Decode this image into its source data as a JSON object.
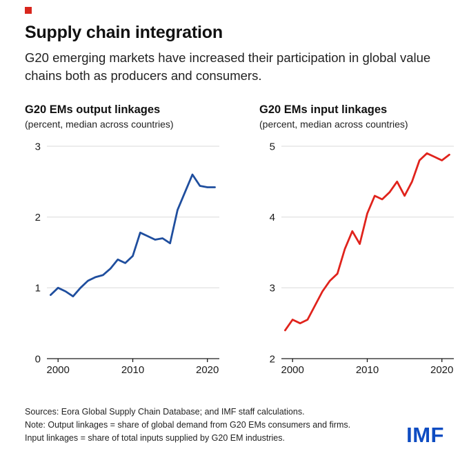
{
  "header": {
    "title": "Supply chain integration",
    "subtitle": "G20 emerging markets have increased their participation in global value chains both as producers and consumers."
  },
  "colors": {
    "accent_red": "#d8261d",
    "logo_blue": "#0e4cc2",
    "gridline": "#d9d9d9",
    "axis": "#1a1a1a"
  },
  "chart_data": [
    {
      "type": "line",
      "title": "G20 EMs output linkages",
      "subtitle": "(percent, median across countries)",
      "color": "#1f4e9e",
      "x": [
        1999,
        2000,
        2001,
        2002,
        2003,
        2004,
        2005,
        2006,
        2007,
        2008,
        2009,
        2010,
        2011,
        2012,
        2013,
        2014,
        2015,
        2016,
        2017,
        2018,
        2019,
        2020,
        2021
      ],
      "values": [
        0.9,
        1.0,
        0.95,
        0.88,
        1.0,
        1.1,
        1.15,
        1.18,
        1.27,
        1.4,
        1.35,
        1.45,
        1.78,
        1.73,
        1.68,
        1.7,
        1.63,
        2.1,
        2.35,
        2.6,
        2.44,
        2.42,
        2.42
      ],
      "xlim": [
        1998.5,
        2021.6
      ],
      "ylim": [
        0,
        3
      ],
      "yticks": [
        0,
        1,
        2,
        3
      ],
      "xticks": [
        2000,
        2010,
        2020
      ],
      "xlabel": "",
      "ylabel": "",
      "grid": true,
      "legend": false
    },
    {
      "type": "line",
      "title": "G20 EMs input linkages",
      "subtitle": "(percent, median across countries)",
      "color": "#e0231c",
      "x": [
        1999,
        2000,
        2001,
        2002,
        2003,
        2004,
        2005,
        2006,
        2007,
        2008,
        2009,
        2010,
        2011,
        2012,
        2013,
        2014,
        2015,
        2016,
        2017,
        2018,
        2019,
        2020,
        2021
      ],
      "values": [
        2.4,
        2.55,
        2.5,
        2.55,
        2.75,
        2.95,
        3.1,
        3.2,
        3.55,
        3.8,
        3.62,
        4.05,
        4.3,
        4.25,
        4.35,
        4.5,
        4.3,
        4.5,
        4.8,
        4.9,
        4.85,
        4.8,
        4.88
      ],
      "xlim": [
        1998.5,
        2021.6
      ],
      "ylim": [
        2,
        5
      ],
      "yticks": [
        2,
        3,
        4,
        5
      ],
      "xticks": [
        2000,
        2010,
        2020
      ],
      "xlabel": "",
      "ylabel": "",
      "grid": true,
      "legend": false
    }
  ],
  "footer": {
    "lines": [
      "Sources: Eora Global Supply Chain Database; and IMF staff calculations.",
      "Note: Output linkages = share of global demand from G20 EMs consumers and firms.",
      "Input linkages = share of total inputs supplied by G20 EM industries."
    ],
    "logo": "IMF"
  }
}
